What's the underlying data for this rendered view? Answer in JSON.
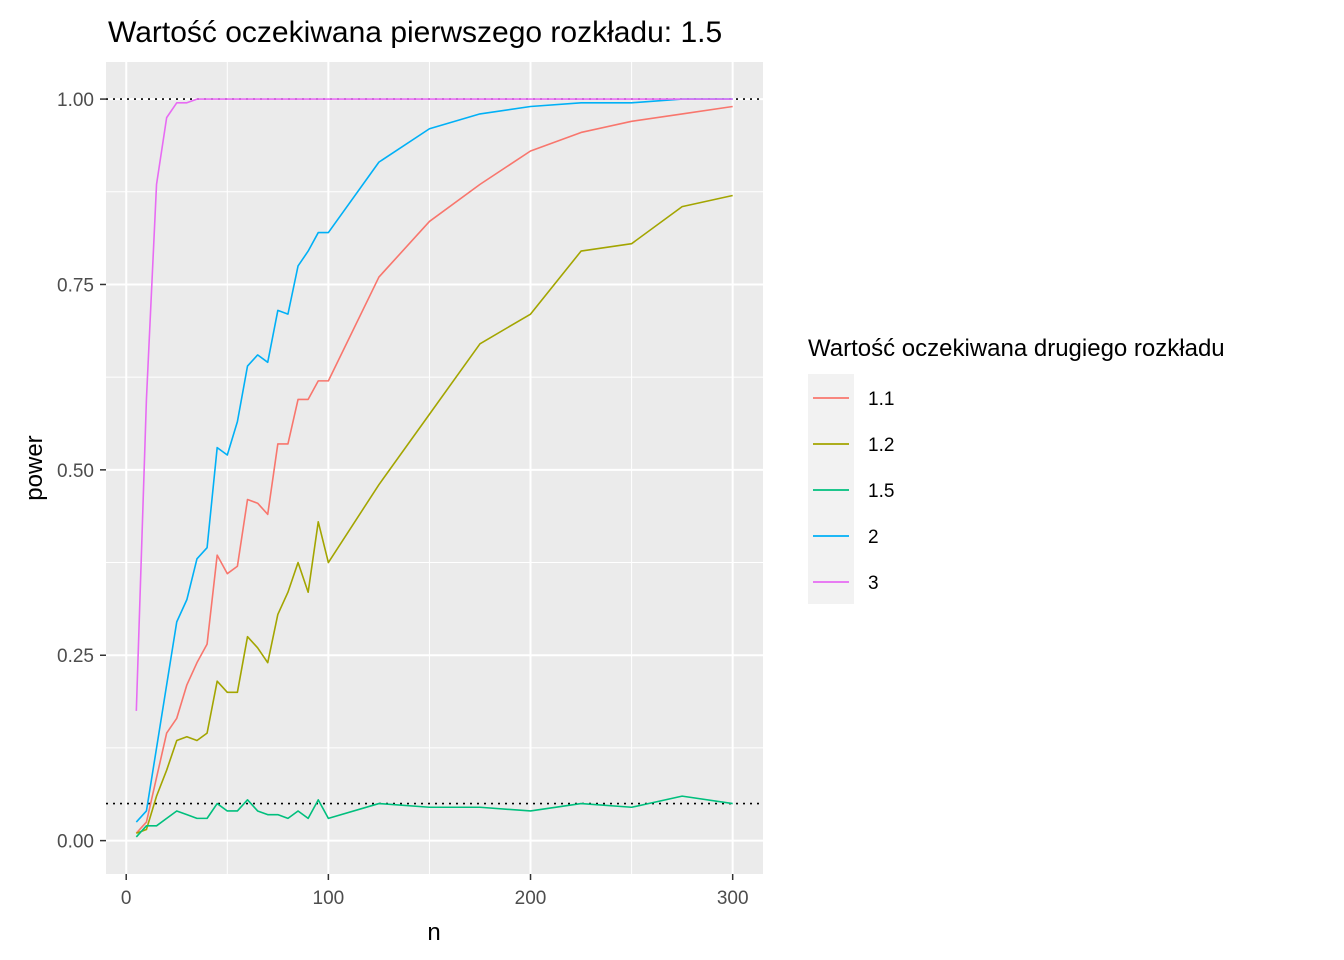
{
  "chart_data": {
    "type": "line",
    "title": "Wartość oczekiwana pierwszego rozkładu: 1.5",
    "xlabel": "n",
    "ylabel": "power",
    "xlim": [
      -10,
      315
    ],
    "ylim": [
      -0.045,
      1.05
    ],
    "x_ticks": [
      0,
      100,
      200,
      300
    ],
    "x_tick_labels": [
      "0",
      "100",
      "200",
      "300"
    ],
    "y_ticks": [
      0.0,
      0.25,
      0.5,
      0.75,
      1.0
    ],
    "y_tick_labels": [
      "0.00",
      "0.25",
      "0.50",
      "0.75",
      "1.00"
    ],
    "grid": true,
    "reference_lines": [
      1.0,
      0.05
    ],
    "legend": {
      "title": "Wartość oczekiwana drugiego rozkładu",
      "position": "right"
    },
    "series": [
      {
        "name": "1.1",
        "color": "#F8766D",
        "x": [
          5,
          10,
          15,
          20,
          25,
          30,
          35,
          40,
          45,
          50,
          55,
          60,
          65,
          70,
          75,
          80,
          85,
          90,
          95,
          100,
          125,
          150,
          175,
          200,
          225,
          250,
          275,
          300
        ],
        "values": [
          0.01,
          0.025,
          0.085,
          0.145,
          0.165,
          0.21,
          0.24,
          0.265,
          0.385,
          0.36,
          0.37,
          0.46,
          0.455,
          0.44,
          0.535,
          0.535,
          0.595,
          0.595,
          0.62,
          0.62,
          0.76,
          0.835,
          0.885,
          0.93,
          0.955,
          0.97,
          0.98,
          0.99
        ]
      },
      {
        "name": "1.2",
        "color": "#A3A500",
        "x": [
          5,
          10,
          15,
          20,
          25,
          30,
          35,
          40,
          45,
          50,
          55,
          60,
          65,
          70,
          75,
          80,
          85,
          90,
          95,
          100,
          125,
          150,
          175,
          200,
          225,
          250,
          275,
          300
        ],
        "values": [
          0.01,
          0.015,
          0.06,
          0.095,
          0.135,
          0.14,
          0.135,
          0.145,
          0.215,
          0.2,
          0.2,
          0.275,
          0.26,
          0.24,
          0.305,
          0.335,
          0.375,
          0.335,
          0.43,
          0.375,
          0.48,
          0.575,
          0.67,
          0.71,
          0.795,
          0.805,
          0.855,
          0.87
        ]
      },
      {
        "name": "1.5",
        "color": "#00BF7D",
        "x": [
          5,
          10,
          15,
          20,
          25,
          30,
          35,
          40,
          45,
          50,
          55,
          60,
          65,
          70,
          75,
          80,
          85,
          90,
          95,
          100,
          125,
          150,
          175,
          200,
          225,
          250,
          275,
          300
        ],
        "values": [
          0.005,
          0.02,
          0.02,
          0.03,
          0.04,
          0.035,
          0.03,
          0.03,
          0.05,
          0.04,
          0.04,
          0.055,
          0.04,
          0.035,
          0.035,
          0.03,
          0.04,
          0.03,
          0.055,
          0.03,
          0.05,
          0.045,
          0.045,
          0.04,
          0.05,
          0.045,
          0.06,
          0.05
        ]
      },
      {
        "name": "2",
        "color": "#00B0F6",
        "x": [
          5,
          10,
          15,
          20,
          25,
          30,
          35,
          40,
          45,
          50,
          55,
          60,
          65,
          70,
          75,
          80,
          85,
          90,
          95,
          100,
          125,
          150,
          175,
          200,
          225,
          250,
          275,
          300
        ],
        "values": [
          0.025,
          0.04,
          0.125,
          0.21,
          0.295,
          0.325,
          0.38,
          0.395,
          0.53,
          0.52,
          0.565,
          0.64,
          0.655,
          0.645,
          0.715,
          0.71,
          0.775,
          0.795,
          0.82,
          0.82,
          0.915,
          0.96,
          0.98,
          0.99,
          0.995,
          0.995,
          1.0,
          1.0
        ]
      },
      {
        "name": "3",
        "color": "#E76BF3",
        "x": [
          5,
          10,
          15,
          20,
          25,
          30,
          35,
          40,
          45,
          50,
          55,
          60,
          65,
          70,
          75,
          80,
          85,
          90,
          95,
          100,
          125,
          150,
          175,
          200,
          225,
          250,
          275,
          300
        ],
        "values": [
          0.175,
          0.595,
          0.885,
          0.975,
          0.995,
          0.995,
          1.0,
          1.0,
          1.0,
          1.0,
          1.0,
          1.0,
          1.0,
          1.0,
          1.0,
          1.0,
          1.0,
          1.0,
          1.0,
          1.0,
          1.0,
          1.0,
          1.0,
          1.0,
          1.0,
          1.0,
          1.0,
          1.0
        ]
      }
    ]
  }
}
